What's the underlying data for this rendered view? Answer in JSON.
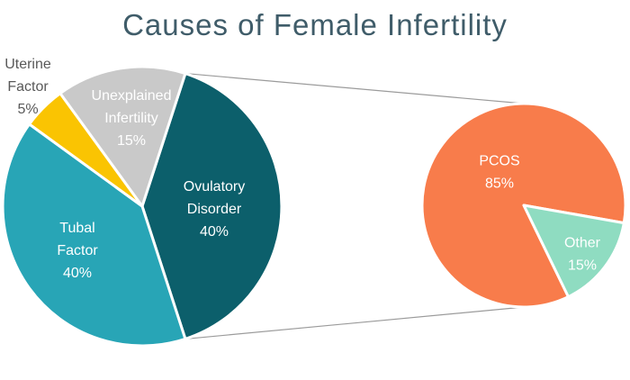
{
  "title": "Causes of Female Infertility",
  "colors": {
    "background": "#ffffff",
    "title_text": "#3f5c69",
    "inside_label_text": "#ffffff",
    "outside_label_text": "#595959",
    "connector_line": "#9b9b9b",
    "slice_divider": "#ffffff"
  },
  "chart_data": [
    {
      "type": "pie",
      "name": "main-pie",
      "title": "Causes of Female Infertility",
      "units": "%",
      "start_angle_deg": 18,
      "slices": [
        {
          "label": "Ovulatory Disorder",
          "value": 40,
          "color": "#0c5f6b",
          "label_inside": true
        },
        {
          "label": "Tubal Factor",
          "value": 40,
          "color": "#28a5b6",
          "label_inside": true
        },
        {
          "label": "Uterine Factor",
          "value": 5,
          "color": "#fac402",
          "label_inside": false
        },
        {
          "label": "Unexplained Infertility",
          "value": 15,
          "color": "#c9c9c9",
          "label_inside": true
        }
      ]
    },
    {
      "type": "pie",
      "name": "ovulatory-disorder-breakdown-pie",
      "units": "%",
      "start_angle_deg": 154,
      "slices": [
        {
          "label": "PCOS",
          "value": 85,
          "color": "#f87c4b",
          "label_inside": true
        },
        {
          "label": "Other",
          "value": 15,
          "color": "#8fdcc1",
          "label_inside": true
        }
      ]
    }
  ]
}
